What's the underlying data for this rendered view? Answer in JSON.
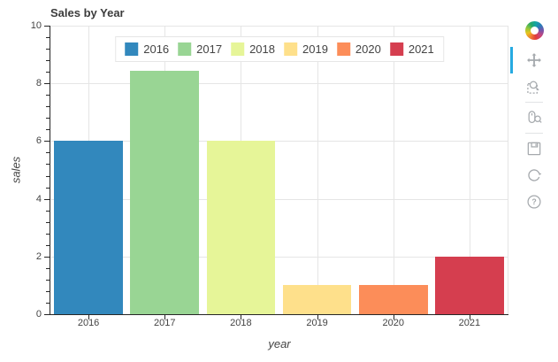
{
  "title": "Sales by Year",
  "chart_data": {
    "type": "bar",
    "title": "Sales by Year",
    "categories": [
      "2016",
      "2017",
      "2018",
      "2019",
      "2020",
      "2021"
    ],
    "values": [
      6,
      8.45,
      6,
      1,
      1,
      2
    ],
    "colors": [
      "#3288bd",
      "#99d594",
      "#e6f598",
      "#fee08b",
      "#fc8d59",
      "#d53e4f"
    ],
    "xlabel": "year",
    "ylabel": "sales",
    "ylim": [
      0,
      10
    ],
    "yticks": [
      0,
      2,
      4,
      6,
      8,
      10
    ],
    "minor_tick_step": 0.4,
    "bar_width_fraction": 0.9,
    "grid": "both",
    "legend": {
      "position": "top_center",
      "entries": [
        "2016",
        "2017",
        "2018",
        "2019",
        "2020",
        "2021"
      ]
    }
  },
  "toolbar": {
    "logo": "bokeh",
    "active_tool": "pan",
    "tools": [
      "pan",
      "box_zoom",
      "wheel_zoom",
      "save",
      "reset",
      "help"
    ],
    "help_glyph": "?"
  },
  "colors": {
    "accent_active_tool": "#26aae1",
    "grid": "#e5e5e5",
    "axis_line": "#262626",
    "tick_label": "#444444",
    "title_text": "#3c3c3c",
    "toolbar_icon": "#a5a9ad"
  }
}
